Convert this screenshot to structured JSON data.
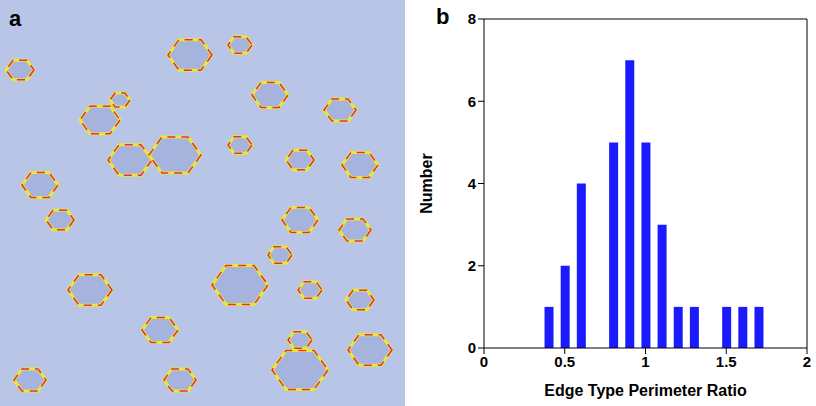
{
  "panel_labels": [
    "a",
    "b"
  ],
  "chart_data": {
    "type": "bar",
    "x_label": "Edge Type Perimeter Ratio",
    "y_label": "Number",
    "x": [
      0.4,
      0.5,
      0.6,
      0.8,
      0.9,
      1.0,
      1.1,
      1.2,
      1.3,
      1.5,
      1.6,
      1.7
    ],
    "values": [
      1,
      2,
      4,
      5,
      7,
      5,
      3,
      1,
      1,
      1,
      1,
      1
    ],
    "color": "#1a1aff",
    "xlim": [
      0,
      2
    ],
    "ylim": [
      0,
      8
    ],
    "xticks": [
      0,
      0.5,
      1,
      1.5,
      2
    ],
    "yticks": [
      0,
      2,
      4,
      6,
      8
    ],
    "grid": false
  }
}
